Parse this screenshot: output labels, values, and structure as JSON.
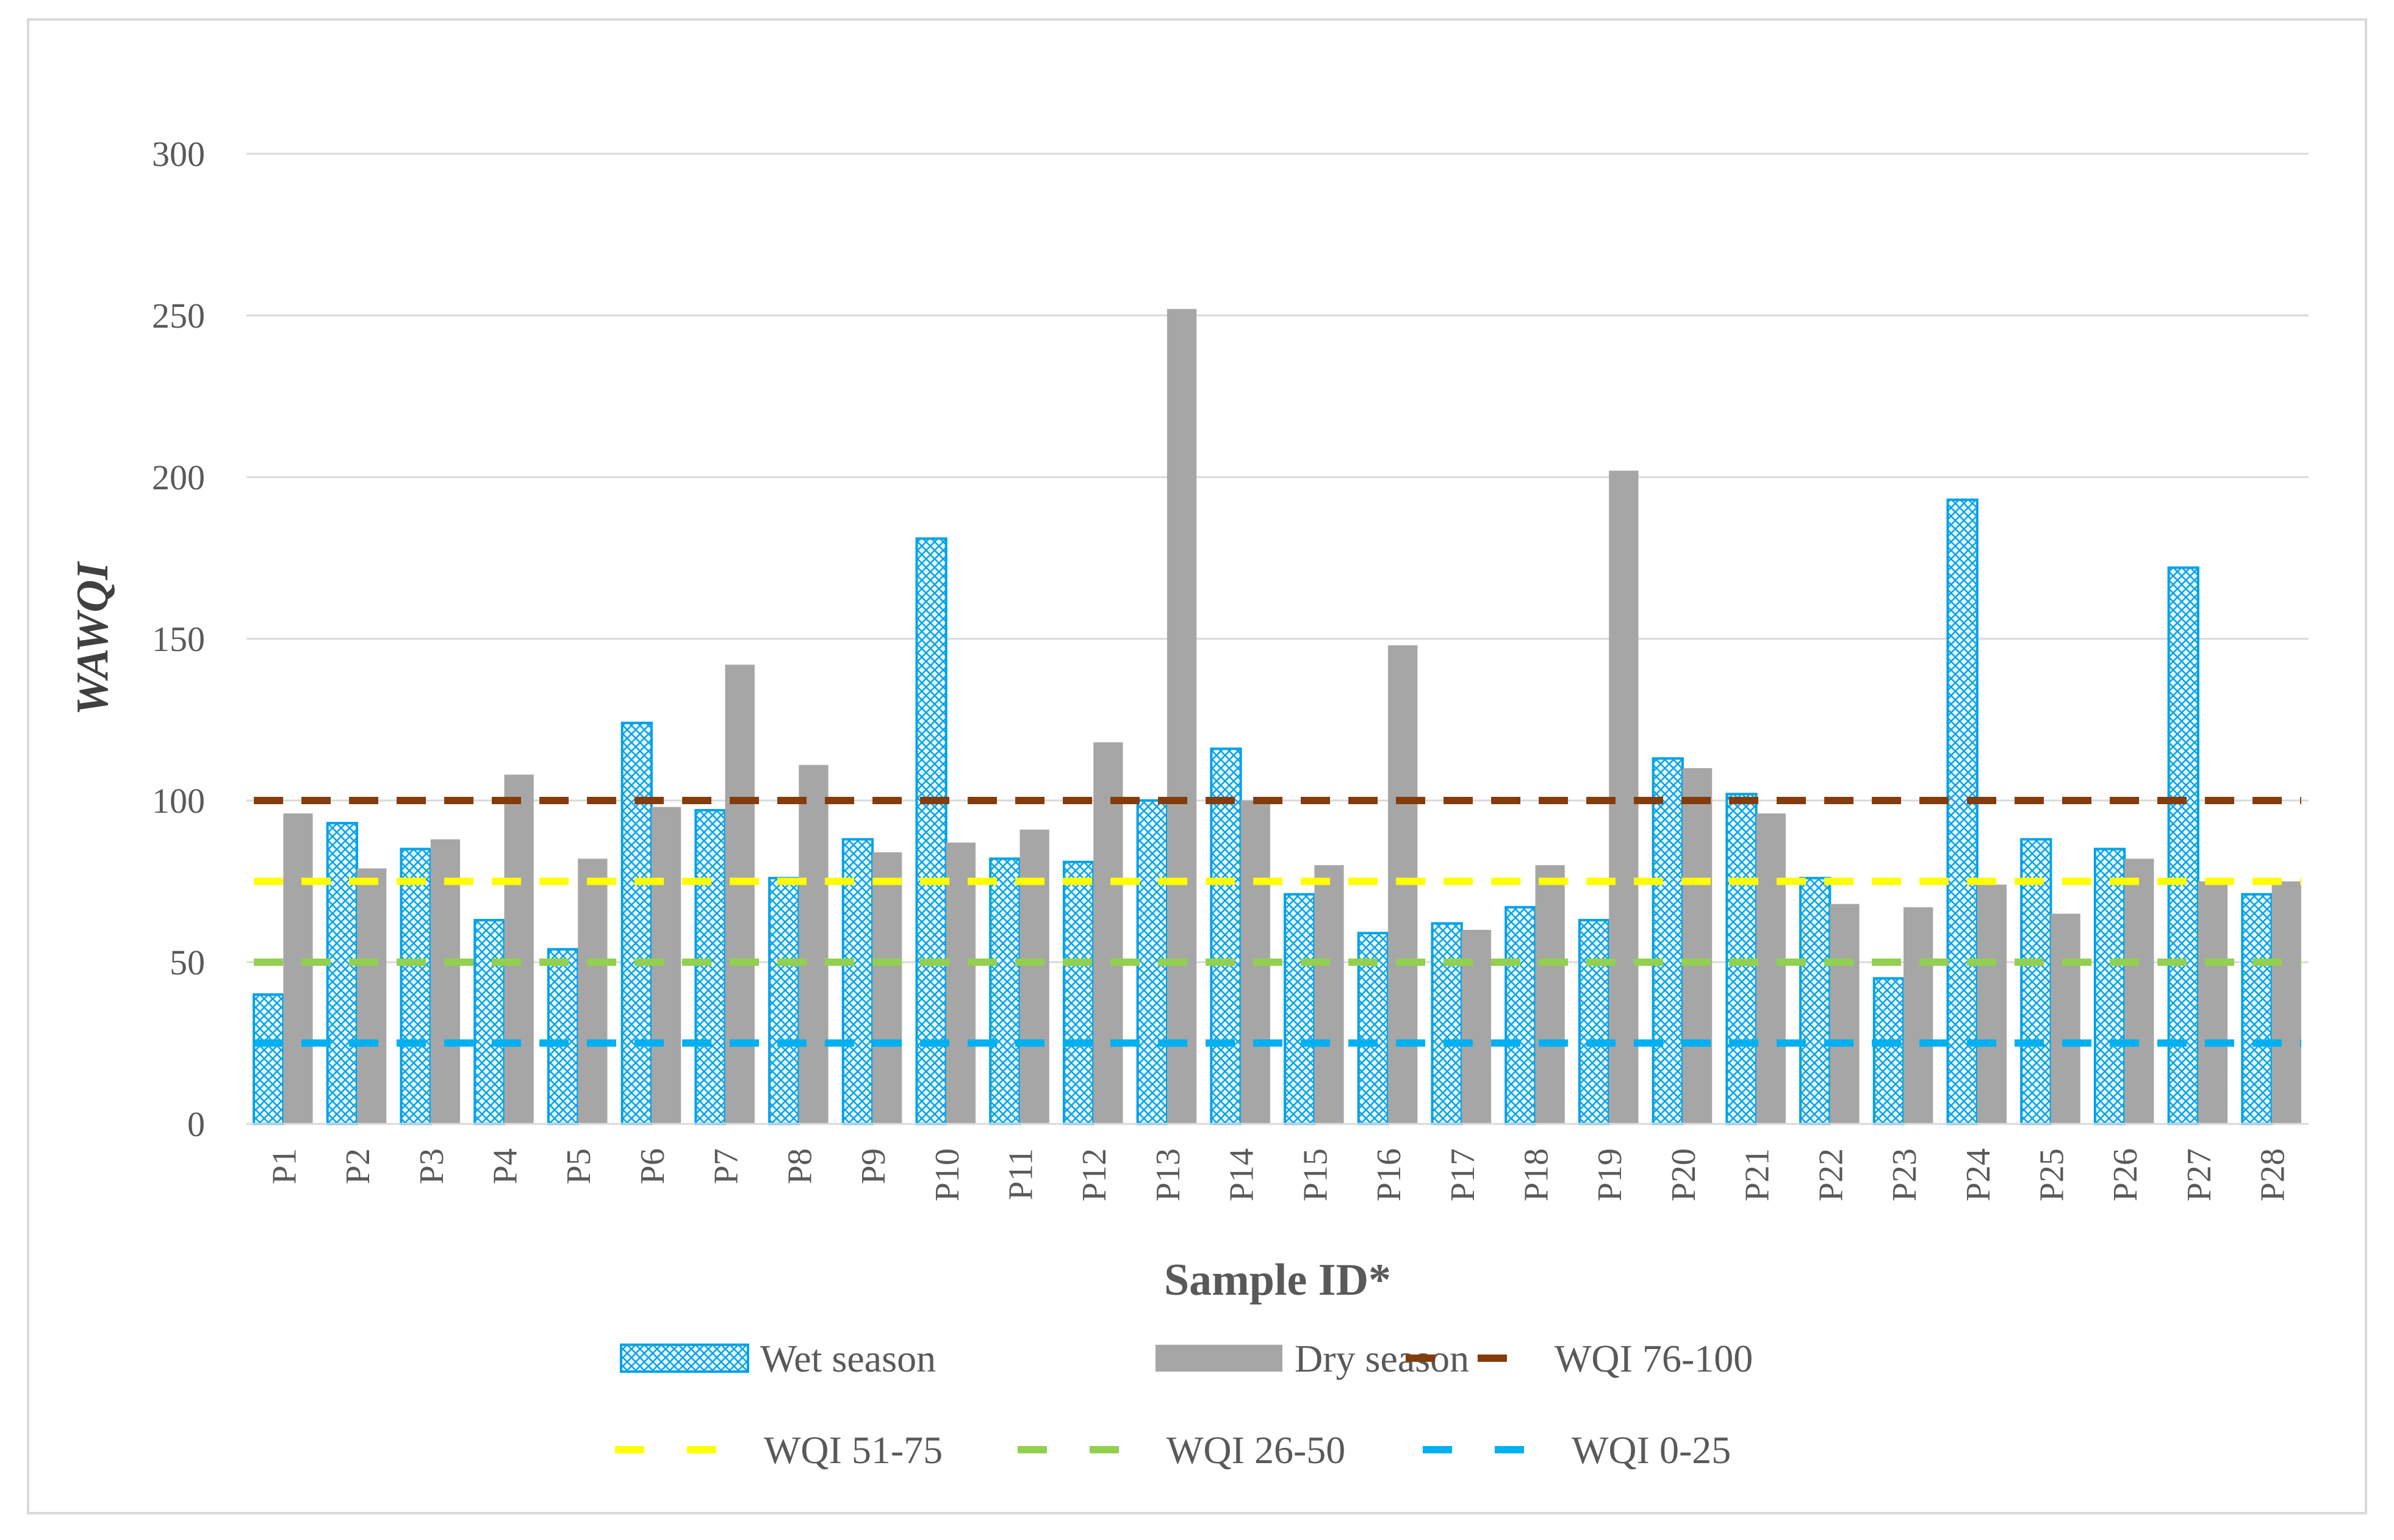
{
  "chart_data": {
    "type": "bar",
    "title": "",
    "xlabel": "Sample ID*",
    "ylabel": "WAWQI",
    "ylim": [
      0,
      300
    ],
    "yticks": [
      0,
      50,
      100,
      150,
      200,
      250,
      300
    ],
    "grid": true,
    "legend_position": "bottom",
    "categories": [
      "P1",
      "P2",
      "P3",
      "P4",
      "P5",
      "P6",
      "P7",
      "P8",
      "P9",
      "P10",
      "P11",
      "P12",
      "P13",
      "P14",
      "P15",
      "P16",
      "P17",
      "P18",
      "P19",
      "P20",
      "P21",
      "P22",
      "P23",
      "P24",
      "P25",
      "P26",
      "P27",
      "P28"
    ],
    "series": [
      {
        "name": "Wet season",
        "color": "#00a2e8",
        "fill": "#dff1fb",
        "values": [
          40,
          93,
          85,
          63,
          54,
          124,
          97,
          76,
          88,
          181,
          82,
          81,
          100,
          116,
          71,
          59,
          62,
          67,
          63,
          113,
          102,
          76,
          45,
          193,
          88,
          85,
          172,
          71
        ]
      },
      {
        "name": "Dry season",
        "color": "#a6a6a6",
        "values": [
          96,
          79,
          88,
          108,
          82,
          98,
          142,
          111,
          84,
          87,
          91,
          118,
          252,
          100,
          80,
          148,
          60,
          80,
          202,
          110,
          96,
          68,
          67,
          74,
          65,
          82,
          75,
          75
        ]
      }
    ],
    "reference_lines": [
      {
        "name": "WQI 76-100",
        "value": 100,
        "color": "#843c0c"
      },
      {
        "name": "WQI 51-75",
        "value": 75,
        "color": "#ffff00"
      },
      {
        "name": "WQI 26-50",
        "value": 50,
        "color": "#92d050"
      },
      {
        "name": "WQI 0-25",
        "value": 25,
        "color": "#00b0f0"
      }
    ]
  }
}
